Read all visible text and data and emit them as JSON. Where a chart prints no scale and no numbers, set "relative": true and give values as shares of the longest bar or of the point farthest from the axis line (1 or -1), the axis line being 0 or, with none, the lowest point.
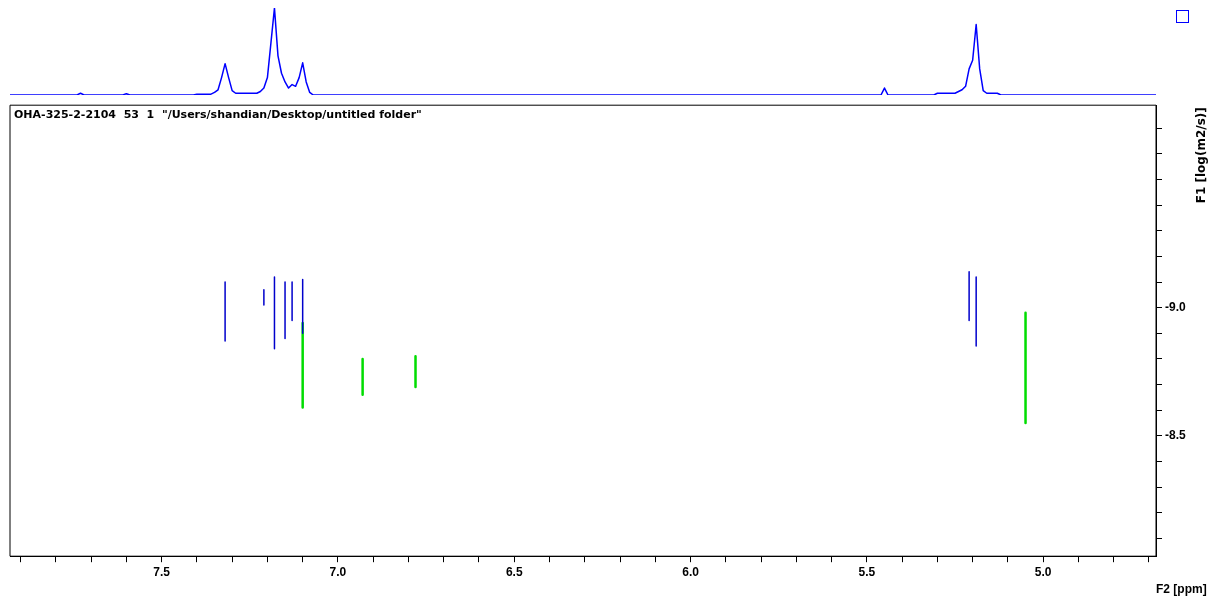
{
  "chart_data": [
    {
      "type": "line",
      "relative": true,
      "grid": false,
      "legend": false,
      "marker": "none",
      "line_style": "solid",
      "categories": [
        null,
        null,
        null,
        null,
        null,
        null,
        null,
        null,
        null,
        null,
        null,
        null,
        null,
        null,
        null,
        null,
        null,
        null,
        null,
        null,
        null,
        null,
        null,
        null,
        null,
        null,
        null,
        null,
        null,
        null,
        null,
        null,
        null,
        null,
        null,
        null,
        null,
        null,
        null,
        null,
        null,
        null,
        null,
        null,
        null,
        null,
        null,
        null,
        null,
        null,
        null,
        null,
        null,
        null,
        null,
        null,
        null,
        null,
        null,
        null,
        null,
        null,
        null,
        null,
        null,
        null,
        null,
        null,
        null,
        null,
        null,
        null,
        null,
        null,
        null,
        null,
        null,
        null,
        null,
        null,
        null,
        null,
        null,
        null,
        null,
        null,
        null,
        null,
        null,
        null,
        null,
        null,
        null,
        null,
        null,
        null,
        null,
        null,
        null,
        null,
        null,
        null,
        null,
        null,
        null,
        null,
        null,
        null,
        null,
        null,
        null,
        null,
        null,
        null,
        null,
        null,
        null,
        null,
        null,
        null,
        null,
        null,
        null,
        null,
        null,
        null,
        null,
        null,
        null,
        null,
        null,
        null,
        null,
        null,
        null,
        null,
        null,
        null,
        null,
        null,
        null,
        null,
        null,
        null,
        null,
        null,
        null,
        null,
        null,
        null,
        null,
        null,
        null,
        null,
        null,
        null,
        null,
        null,
        null,
        null,
        null,
        null,
        null,
        null,
        null,
        null,
        null,
        null,
        null,
        null,
        null,
        null,
        null,
        null,
        null,
        null,
        null,
        null,
        null,
        null,
        null,
        null,
        null,
        null,
        null,
        null,
        null,
        null,
        null,
        null,
        null,
        null,
        null,
        null,
        null,
        null,
        null,
        null,
        null,
        null,
        null,
        null,
        null,
        null,
        null,
        null,
        null,
        null,
        null,
        null,
        null,
        null,
        null,
        null,
        null,
        null,
        null,
        null,
        null,
        null,
        null,
        null,
        null,
        null,
        null,
        null,
        null,
        null,
        null,
        null,
        null,
        null,
        null,
        null,
        null,
        null,
        null,
        null,
        null,
        null,
        null,
        null,
        null,
        null,
        null,
        null,
        null,
        null,
        null,
        null,
        null,
        null,
        null,
        null,
        null,
        null,
        null,
        null,
        null,
        null,
        null,
        null,
        null,
        null,
        null,
        null,
        null,
        null,
        null,
        null,
        null,
        null,
        null,
        null,
        null,
        null,
        null,
        null,
        null,
        null,
        null,
        null,
        null,
        null,
        null,
        null,
        null,
        null,
        null,
        null,
        null,
        null,
        null,
        null,
        null,
        null,
        null,
        null,
        null,
        null,
        null,
        null,
        null,
        null,
        null,
        null,
        null,
        null,
        null,
        null,
        null,
        null,
        null,
        null,
        null,
        null,
        null,
        null,
        null,
        null,
        null,
        null,
        null,
        null,
        null,
        null
      ],
      "series": [
        {
          "color": "#0000ff",
          "values": [
            0,
            0,
            0,
            0,
            0,
            0,
            0,
            0,
            0,
            0,
            0,
            0,
            0,
            0,
            0,
            0,
            0,
            0,
            0,
            0,
            0.02,
            0,
            0,
            0,
            0,
            0,
            0,
            0,
            0,
            0,
            0,
            0,
            0,
            0.015,
            0,
            0,
            0,
            0,
            0,
            0,
            0,
            0,
            0,
            0,
            0,
            0,
            0,
            0,
            0,
            0,
            0,
            0,
            0,
            0.01,
            0.01,
            0.01,
            0.01,
            0.01,
            0.03,
            0.06,
            0.2,
            0.36,
            0.2,
            0.05,
            0.02,
            0.02,
            0.02,
            0.02,
            0.02,
            0.02,
            0.02,
            0.04,
            0.08,
            0.2,
            0.6,
            1.0,
            0.45,
            0.25,
            0.15,
            0.08,
            0.12,
            0.1,
            0.2,
            0.37,
            0.15,
            0.03,
            0,
            0,
            0,
            0,
            0,
            0,
            0,
            0,
            0,
            0,
            0,
            0,
            0,
            0,
            0,
            0,
            0,
            0,
            0,
            0,
            0,
            0,
            0,
            0,
            0,
            0,
            0,
            0,
            0,
            0,
            0,
            0,
            0,
            0,
            0,
            0,
            0,
            0,
            0,
            0,
            0,
            0,
            0,
            0,
            0,
            0,
            0,
            0,
            0,
            0,
            0,
            0,
            0,
            0,
            0,
            0,
            0,
            0,
            0,
            0,
            0,
            0,
            0,
            0,
            0,
            0,
            0,
            0,
            0,
            0,
            0,
            0,
            0,
            0,
            0,
            0,
            0,
            0,
            0,
            0,
            0,
            0,
            0,
            0,
            0,
            0,
            0,
            0,
            0,
            0,
            0,
            0,
            0,
            0,
            0,
            0,
            0,
            0,
            0,
            0,
            0,
            0,
            0,
            0,
            0,
            0,
            0,
            0,
            0,
            0,
            0,
            0,
            0,
            0,
            0,
            0,
            0,
            0,
            0,
            0,
            0,
            0,
            0,
            0,
            0,
            0,
            0,
            0,
            0,
            0,
            0,
            0,
            0,
            0,
            0,
            0,
            0,
            0,
            0,
            0,
            0,
            0,
            0,
            0,
            0,
            0,
            0,
            0,
            0,
            0,
            0,
            0,
            0,
            0,
            0,
            0,
            0,
            0,
            0,
            0,
            0,
            0,
            0.08,
            0,
            0,
            0,
            0,
            0,
            0,
            0,
            0,
            0,
            0,
            0,
            0,
            0,
            0,
            0.02,
            0.02,
            0.02,
            0.02,
            0.02,
            0.02,
            0.04,
            0.06,
            0.1,
            0.3,
            0.4,
            0.81,
            0.3,
            0.05,
            0.02,
            0.02,
            0.02,
            0.02,
            0,
            0,
            0,
            0,
            0,
            0,
            0,
            0,
            0,
            0,
            0,
            0,
            0,
            0,
            0,
            0,
            0,
            0,
            0,
            0,
            0,
            0,
            0,
            0,
            0,
            0,
            0,
            0,
            0,
            0,
            0,
            0,
            0,
            0,
            0,
            0,
            0,
            0,
            0,
            0,
            0,
            0,
            0,
            0,
            0
          ]
        }
      ]
    },
    {
      "type": "line",
      "xlim": [
        7.93,
        4.68
      ],
      "ylim": [
        -8.03,
        -9.79
      ],
      "xlabel": "F2 [ppm]",
      "ylabel": "F1 [log(m2/s)]",
      "grid": false,
      "legend": false,
      "marker": "none",
      "line_style": "solid",
      "annotations": [
        "OHA-325-2-2104  53  1  \"/Users/shandian/Desktop/untitled folder\""
      ],
      "xticks": [
        {
          "value": 7.9,
          "label": null
        },
        {
          "value": 7.8,
          "label": null
        },
        {
          "value": 7.7,
          "label": null
        },
        {
          "value": 7.6,
          "label": null
        },
        {
          "value": 7.5,
          "label": "7.5"
        },
        {
          "value": 7.4,
          "label": null
        },
        {
          "value": 7.3,
          "label": null
        },
        {
          "value": 7.2,
          "label": null
        },
        {
          "value": 7.1,
          "label": null
        },
        {
          "value": 7.0,
          "label": "7.0"
        },
        {
          "value": 6.9,
          "label": null
        },
        {
          "value": 6.8,
          "label": null
        },
        {
          "value": 6.7,
          "label": null
        },
        {
          "value": 6.6,
          "label": null
        },
        {
          "value": 6.5,
          "label": "6.5"
        },
        {
          "value": 6.4,
          "label": null
        },
        {
          "value": 6.3,
          "label": null
        },
        {
          "value": 6.2,
          "label": null
        },
        {
          "value": 6.1,
          "label": null
        },
        {
          "value": 6.0,
          "label": "6.0"
        },
        {
          "value": 5.9,
          "label": null
        },
        {
          "value": 5.8,
          "label": null
        },
        {
          "value": 5.7,
          "label": null
        },
        {
          "value": 5.6,
          "label": null
        },
        {
          "value": 5.5,
          "label": "5.5"
        },
        {
          "value": 5.4,
          "label": null
        },
        {
          "value": 5.3,
          "label": null
        },
        {
          "value": 5.2,
          "label": null
        },
        {
          "value": 5.1,
          "label": null
        },
        {
          "value": 5.0,
          "label": "5.0"
        },
        {
          "value": 4.9,
          "label": null
        },
        {
          "value": 4.8,
          "label": null
        },
        {
          "value": 4.7,
          "label": null
        }
      ],
      "yticks": [
        {
          "value": -9.7,
          "label": null
        },
        {
          "value": -9.6,
          "label": null
        },
        {
          "value": -9.5,
          "label": null
        },
        {
          "value": -9.4,
          "label": null
        },
        {
          "value": -9.3,
          "label": null
        },
        {
          "value": -9.2,
          "label": null
        },
        {
          "value": -9.1,
          "label": null
        },
        {
          "value": -9.0,
          "label": "-9.0"
        },
        {
          "value": -8.9,
          "label": null
        },
        {
          "value": -8.8,
          "label": null
        },
        {
          "value": -8.7,
          "label": null
        },
        {
          "value": -8.6,
          "label": null
        },
        {
          "value": -8.5,
          "label": "-8.5"
        },
        {
          "value": -8.4,
          "label": null
        },
        {
          "value": -8.3,
          "label": null
        },
        {
          "value": -8.2,
          "label": null
        },
        {
          "value": -8.1,
          "label": null
        }
      ],
      "series": [
        {
          "color": "#0000cc",
          "x": [
            7.32,
            7.32
          ],
          "values": [
            -9.1,
            -8.87
          ]
        },
        {
          "color": "#0000cc",
          "x": [
            7.21,
            7.21
          ],
          "values": [
            -9.07,
            -9.01
          ]
        },
        {
          "color": "#0000cc",
          "x": [
            7.18,
            7.18
          ],
          "values": [
            -9.12,
            -8.84
          ]
        },
        {
          "color": "#0000cc",
          "x": [
            7.15,
            7.15
          ],
          "values": [
            -9.1,
            -8.88
          ]
        },
        {
          "color": "#0000cc",
          "x": [
            7.13,
            7.13
          ],
          "values": [
            -9.1,
            -8.95
          ]
        },
        {
          "color": "#0000cc",
          "x": [
            7.1,
            7.1
          ],
          "values": [
            -9.11,
            -8.9
          ]
        },
        {
          "color": "#0000cc",
          "x": [
            5.21,
            5.21
          ],
          "values": [
            -9.14,
            -8.95
          ]
        },
        {
          "color": "#0000cc",
          "x": [
            5.19,
            5.19
          ],
          "values": [
            -9.12,
            -8.85
          ]
        },
        {
          "color": "#00dd00",
          "x": [
            7.1,
            7.1
          ],
          "values": [
            -8.94,
            -8.61
          ]
        },
        {
          "color": "#00dd00",
          "x": [
            6.93,
            6.93
          ],
          "values": [
            -8.8,
            -8.66
          ]
        },
        {
          "color": "#00dd00",
          "x": [
            6.78,
            6.78
          ],
          "values": [
            -8.81,
            -8.69
          ]
        },
        {
          "color": "#00dd00",
          "x": [
            5.05,
            5.05
          ],
          "values": [
            -8.98,
            -8.55
          ]
        }
      ]
    }
  ]
}
